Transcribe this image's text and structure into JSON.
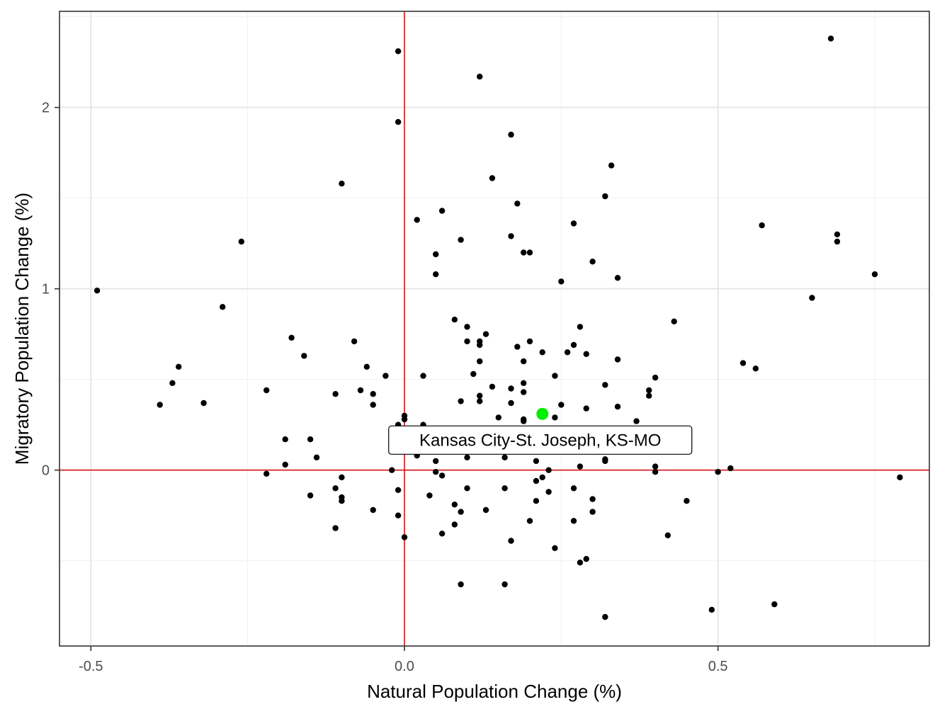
{
  "chart_data": {
    "type": "scatter",
    "title": "",
    "xlabel": "Natural Population Change (%)",
    "ylabel": "Migratory Population Change (%)",
    "xlim": [
      -0.55,
      0.837
    ],
    "ylim": [
      -0.97,
      2.53
    ],
    "x_ticks": [
      -0.5,
      0.0,
      0.5
    ],
    "x_tick_labels": [
      "-0.5",
      "0.0",
      "0.5"
    ],
    "y_ticks": [
      0,
      1,
      2
    ],
    "y_tick_labels": [
      "0",
      "1",
      "2"
    ],
    "grid": true,
    "reference_lines": {
      "x": 0,
      "y": 0,
      "color": "#d7191c"
    },
    "point_color": "#000000",
    "highlight": {
      "label": "Kansas City-St. Joseph, KS-MO",
      "x": 0.22,
      "y": 0.31,
      "color": "#00ee00"
    },
    "points": [
      [
        -0.49,
        0.99
      ],
      [
        -0.39,
        0.36
      ],
      [
        -0.37,
        0.48
      ],
      [
        -0.36,
        0.57
      ],
      [
        -0.32,
        0.37
      ],
      [
        -0.29,
        0.9
      ],
      [
        -0.26,
        1.26
      ],
      [
        -0.22,
        0.44
      ],
      [
        -0.22,
        -0.02
      ],
      [
        -0.19,
        0.17
      ],
      [
        -0.19,
        0.03
      ],
      [
        -0.18,
        0.73
      ],
      [
        -0.16,
        0.63
      ],
      [
        -0.15,
        0.17
      ],
      [
        -0.15,
        -0.14
      ],
      [
        -0.14,
        0.07
      ],
      [
        -0.11,
        0.42
      ],
      [
        -0.11,
        -0.1
      ],
      [
        -0.11,
        -0.32
      ],
      [
        -0.1,
        -0.15
      ],
      [
        -0.1,
        -0.04
      ],
      [
        -0.1,
        -0.17
      ],
      [
        -0.1,
        1.58
      ],
      [
        -0.08,
        0.71
      ],
      [
        -0.07,
        0.44
      ],
      [
        -0.06,
        0.57
      ],
      [
        -0.05,
        0.42
      ],
      [
        -0.05,
        0.36
      ],
      [
        -0.05,
        -0.22
      ],
      [
        -0.03,
        0.52
      ],
      [
        -0.02,
        0.0
      ],
      [
        -0.01,
        2.31
      ],
      [
        -0.01,
        1.92
      ],
      [
        -0.01,
        0.25
      ],
      [
        -0.01,
        -0.11
      ],
      [
        -0.01,
        -0.25
      ],
      [
        0.0,
        0.3
      ],
      [
        0.0,
        0.28
      ],
      [
        0.0,
        -0.37
      ],
      [
        0.02,
        1.38
      ],
      [
        0.02,
        0.08
      ],
      [
        0.03,
        0.52
      ],
      [
        0.03,
        0.25
      ],
      [
        0.04,
        -0.14
      ],
      [
        0.05,
        1.19
      ],
      [
        0.05,
        1.08
      ],
      [
        0.05,
        0.05
      ],
      [
        0.05,
        -0.01
      ],
      [
        0.06,
        1.43
      ],
      [
        0.06,
        -0.03
      ],
      [
        0.06,
        -0.35
      ],
      [
        0.08,
        0.83
      ],
      [
        0.08,
        -0.19
      ],
      [
        0.08,
        -0.3
      ],
      [
        0.09,
        1.27
      ],
      [
        0.09,
        0.38
      ],
      [
        0.09,
        -0.23
      ],
      [
        0.09,
        -0.63
      ],
      [
        0.1,
        0.79
      ],
      [
        0.1,
        0.71
      ],
      [
        0.1,
        0.07
      ],
      [
        0.1,
        -0.1
      ],
      [
        0.11,
        0.53
      ],
      [
        0.12,
        2.17
      ],
      [
        0.12,
        0.71
      ],
      [
        0.12,
        0.69
      ],
      [
        0.12,
        0.6
      ],
      [
        0.12,
        0.41
      ],
      [
        0.12,
        0.38
      ],
      [
        0.13,
        0.75
      ],
      [
        0.13,
        -0.22
      ],
      [
        0.14,
        1.61
      ],
      [
        0.14,
        0.46
      ],
      [
        0.15,
        0.29
      ],
      [
        0.16,
        0.07
      ],
      [
        0.16,
        -0.1
      ],
      [
        0.16,
        -0.63
      ],
      [
        0.17,
        1.85
      ],
      [
        0.17,
        1.29
      ],
      [
        0.17,
        0.45
      ],
      [
        0.17,
        0.37
      ],
      [
        0.17,
        -0.39
      ],
      [
        0.18,
        1.47
      ],
      [
        0.18,
        0.68
      ],
      [
        0.19,
        1.2
      ],
      [
        0.19,
        0.6
      ],
      [
        0.19,
        0.48
      ],
      [
        0.19,
        0.43
      ],
      [
        0.19,
        0.28
      ],
      [
        0.19,
        0.27
      ],
      [
        0.2,
        1.2
      ],
      [
        0.2,
        0.71
      ],
      [
        0.2,
        -0.28
      ],
      [
        0.21,
        0.05
      ],
      [
        0.21,
        -0.06
      ],
      [
        0.21,
        -0.17
      ],
      [
        0.22,
        0.65
      ],
      [
        0.22,
        -0.04
      ],
      [
        0.23,
        0.0
      ],
      [
        0.23,
        -0.12
      ],
      [
        0.24,
        0.52
      ],
      [
        0.24,
        0.29
      ],
      [
        0.24,
        -0.43
      ],
      [
        0.25,
        1.04
      ],
      [
        0.25,
        0.36
      ],
      [
        0.26,
        0.65
      ],
      [
        0.27,
        1.36
      ],
      [
        0.27,
        0.69
      ],
      [
        0.27,
        -0.1
      ],
      [
        0.27,
        -0.28
      ],
      [
        0.28,
        0.79
      ],
      [
        0.28,
        0.02
      ],
      [
        0.28,
        -0.51
      ],
      [
        0.29,
        0.64
      ],
      [
        0.29,
        0.34
      ],
      [
        0.29,
        -0.49
      ],
      [
        0.3,
        1.15
      ],
      [
        0.3,
        -0.16
      ],
      [
        0.3,
        -0.23
      ],
      [
        0.32,
        1.51
      ],
      [
        0.32,
        0.47
      ],
      [
        0.32,
        0.06
      ],
      [
        0.32,
        0.05
      ],
      [
        0.32,
        -0.81
      ],
      [
        0.33,
        1.68
      ],
      [
        0.34,
        1.06
      ],
      [
        0.34,
        0.61
      ],
      [
        0.34,
        0.35
      ],
      [
        0.37,
        0.27
      ],
      [
        0.39,
        0.44
      ],
      [
        0.39,
        0.41
      ],
      [
        0.4,
        0.51
      ],
      [
        0.4,
        0.02
      ],
      [
        0.4,
        -0.01
      ],
      [
        0.42,
        -0.36
      ],
      [
        0.43,
        0.82
      ],
      [
        0.45,
        -0.17
      ],
      [
        0.49,
        -0.77
      ],
      [
        0.5,
        -0.01
      ],
      [
        0.52,
        0.01
      ],
      [
        0.54,
        0.59
      ],
      [
        0.56,
        0.56
      ],
      [
        0.57,
        1.35
      ],
      [
        0.59,
        -0.74
      ],
      [
        0.65,
        0.95
      ],
      [
        0.68,
        2.38
      ],
      [
        0.69,
        1.3
      ],
      [
        0.69,
        1.26
      ],
      [
        0.75,
        1.08
      ],
      [
        0.79,
        -0.04
      ]
    ]
  }
}
